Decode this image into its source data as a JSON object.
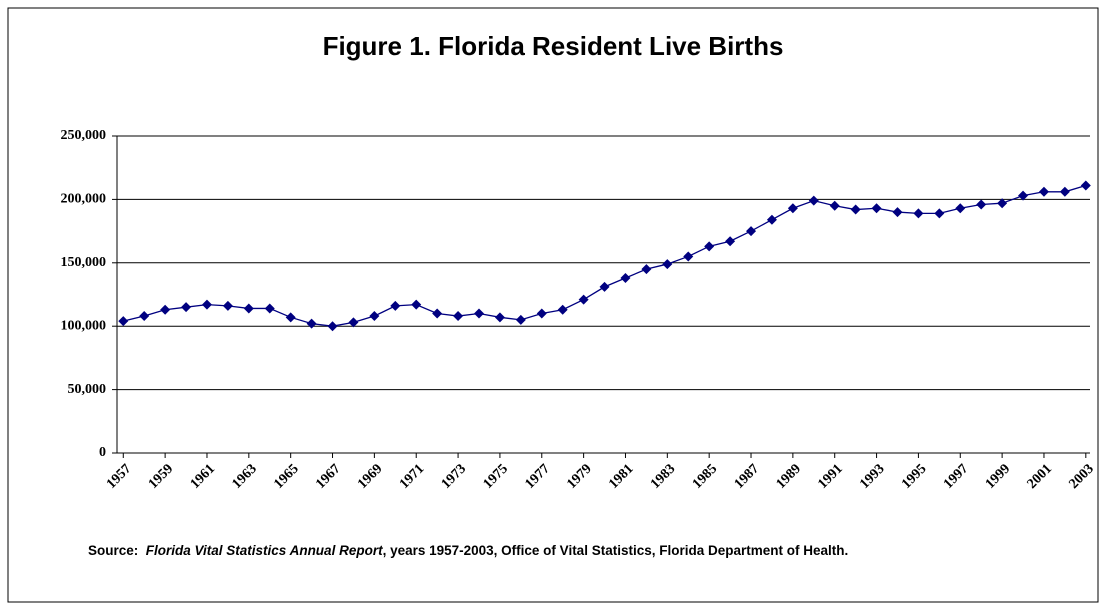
{
  "chart_data": {
    "type": "line",
    "title": "Figure 1.  Florida Resident Live Births",
    "x": [
      1957,
      1958,
      1959,
      1960,
      1961,
      1962,
      1963,
      1964,
      1965,
      1966,
      1967,
      1968,
      1969,
      1970,
      1971,
      1972,
      1973,
      1974,
      1975,
      1976,
      1977,
      1978,
      1979,
      1980,
      1981,
      1982,
      1983,
      1984,
      1985,
      1986,
      1987,
      1988,
      1989,
      1990,
      1991,
      1992,
      1993,
      1994,
      1995,
      1996,
      1997,
      1998,
      1999,
      2000,
      2001,
      2002,
      2003
    ],
    "series": [
      {
        "name": "Florida Resident Live Births",
        "color": "#000080",
        "values": [
          104000,
          108000,
          113000,
          115000,
          117000,
          116000,
          114000,
          114000,
          107000,
          102000,
          100000,
          103000,
          108000,
          116000,
          117000,
          110000,
          108000,
          110000,
          107000,
          105000,
          110000,
          113000,
          121000,
          131000,
          138000,
          145000,
          149000,
          155000,
          163000,
          167000,
          175000,
          184000,
          193000,
          199000,
          195000,
          192000,
          193000,
          190000,
          189000,
          189000,
          193000,
          196000,
          197000,
          203000,
          206000,
          206000,
          211000
        ]
      }
    ],
    "xlim": [
      1956.7,
      2003.2
    ],
    "xticks": [
      1957,
      1959,
      1961,
      1963,
      1965,
      1967,
      1969,
      1971,
      1973,
      1975,
      1977,
      1979,
      1981,
      1983,
      1985,
      1987,
      1989,
      1991,
      1993,
      1995,
      1997,
      1999,
      2001,
      2003
    ],
    "ylim": [
      0,
      250000
    ],
    "yticks": [
      0,
      {
        "value": 50000,
        "label": "50,000"
      },
      {
        "value": 100000,
        "label": "100,000"
      },
      {
        "value": 150000,
        "label": "150,000"
      },
      {
        "value": 200000,
        "label": "200,000"
      },
      {
        "value": 250000,
        "label": "250,000"
      }
    ],
    "grid": true,
    "note": [
      "Source:",
      "Florida Vital Statistics Annual Report",
      ", years 1957-2003, Office of Vital Statistics, Florida Department of Health."
    ]
  }
}
